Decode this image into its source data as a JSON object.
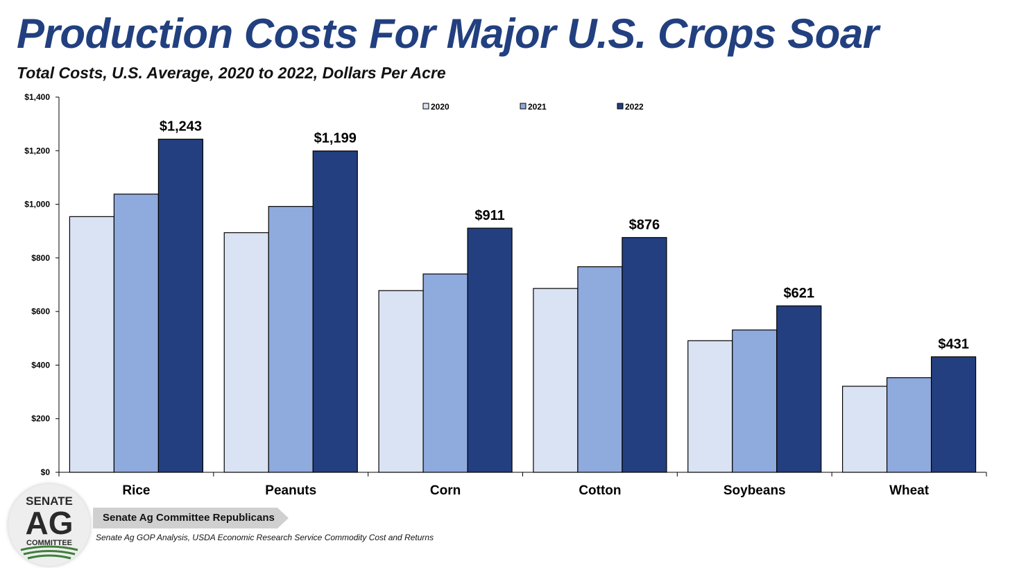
{
  "header": {
    "title": "Production Costs For Major U.S. Crops Soar",
    "subtitle": "Total Costs, U.S. Average, 2020 to 2022, Dollars Per Acre"
  },
  "chart_data": {
    "type": "bar",
    "title": "Production Costs For Major U.S. Crops Soar",
    "subtitle": "Total Costs, U.S. Average, 2020 to 2022, Dollars Per Acre",
    "xlabel": "",
    "ylabel": "",
    "categories": [
      "Rice",
      "Peanuts",
      "Corn",
      "Cotton",
      "Soybeans",
      "Wheat"
    ],
    "series": [
      {
        "name": "2020",
        "color": "#dae3f3",
        "values": [
          954,
          894,
          678,
          686,
          491,
          321
        ]
      },
      {
        "name": "2021",
        "color": "#8faadc",
        "values": [
          1038,
          992,
          740,
          767,
          531,
          353
        ]
      },
      {
        "name": "2022",
        "color": "#243f80",
        "values": [
          1243,
          1199,
          911,
          876,
          621,
          431
        ]
      }
    ],
    "data_labels": [
      "$1,243",
      "$1,199",
      "$911",
      "$876",
      "$621",
      "$431"
    ],
    "ylim": [
      0,
      1400
    ],
    "yticks": [
      0,
      200,
      400,
      600,
      800,
      1000,
      1200,
      1400
    ],
    "ytick_labels": [
      "$0",
      "$200",
      "$400",
      "$600",
      "$800",
      "$1,000",
      "$1,200",
      "$1,400"
    ],
    "grid": false,
    "legend_position": "top-right"
  },
  "footer": {
    "org_name": "Senate Ag Committee Republicans",
    "source": "Senate Ag GOP Analysis, USDA Economic Research Service Commodity Cost and Returns",
    "logo_text": [
      "SENATE",
      "AG",
      "COMMITTEE"
    ]
  }
}
